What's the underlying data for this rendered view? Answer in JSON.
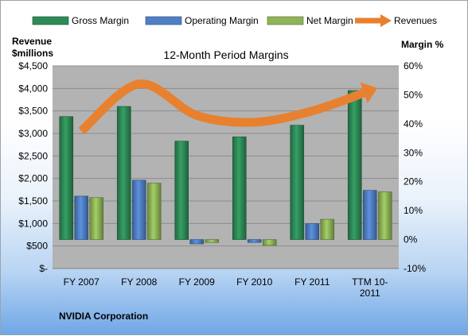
{
  "chart_data": {
    "type": "bar",
    "title": "12-Month Period Margins",
    "categories": [
      "FY 2007",
      "FY 2008",
      "FY 2009",
      "FY 2010",
      "FY 2011",
      "TTM 10-2011"
    ],
    "category_lines": [
      [
        "FY 2007"
      ],
      [
        "FY 2008"
      ],
      [
        "FY 2009"
      ],
      [
        "FY 2010"
      ],
      [
        "FY 2011"
      ],
      [
        "TTM 10-",
        "2011"
      ]
    ],
    "y_left": {
      "label_lines": [
        "Revenue",
        "$millions"
      ],
      "ylim": [
        0,
        4500
      ],
      "ticks": [
        "$-",
        "$500",
        "$1,000",
        "$1,500",
        "$2,000",
        "$2,500",
        "$3,000",
        "$3,500",
        "$4,000",
        "$4,500"
      ]
    },
    "y_right": {
      "label": "Margin %",
      "ylim": [
        -10,
        60
      ],
      "ticks": [
        "-10%",
        "0%",
        "10%",
        "20%",
        "30%",
        "40%",
        "50%",
        "60%"
      ]
    },
    "series": [
      {
        "name": "Gross Margin",
        "kind": "bar",
        "axis": "right",
        "color": "#2e8b57",
        "values": [
          42.5,
          46.0,
          34.0,
          35.5,
          39.5,
          51.5
        ]
      },
      {
        "name": "Operating Margin",
        "kind": "bar",
        "axis": "right",
        "color": "#4f7fc4",
        "values": [
          15.0,
          20.5,
          -1.5,
          -1.0,
          5.5,
          17.0
        ]
      },
      {
        "name": "Net Margin",
        "kind": "bar",
        "axis": "right",
        "color": "#8fb458",
        "values": [
          14.5,
          19.5,
          -1.0,
          -2.0,
          7.0,
          16.5
        ]
      },
      {
        "name": "Revenues",
        "kind": "line",
        "axis": "left",
        "color": "#e8812f",
        "values": [
          3050,
          4100,
          3400,
          3250,
          3500,
          3950
        ]
      }
    ],
    "grid": true,
    "legend": "top",
    "plot_background": "#b3b3b3"
  },
  "footer": "NVIDIA Corporation"
}
